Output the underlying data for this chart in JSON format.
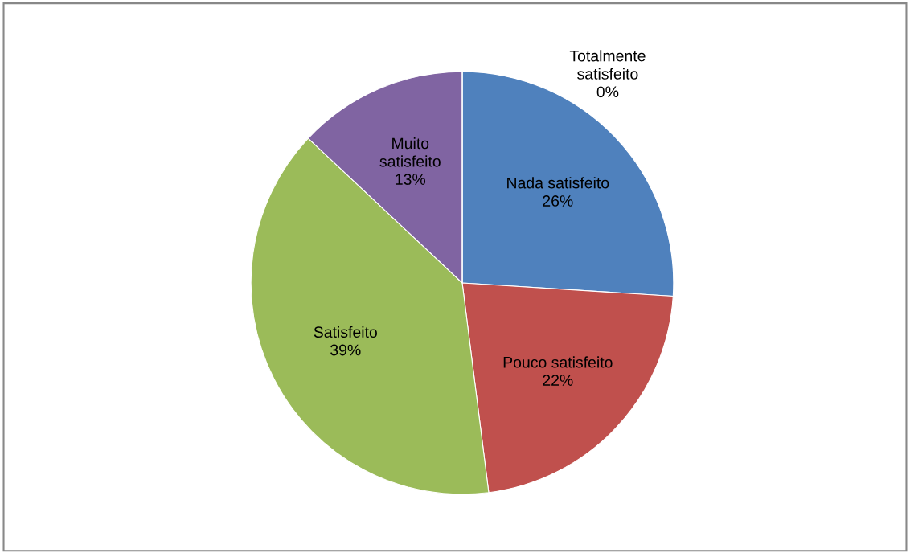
{
  "chart_data": {
    "type": "pie",
    "categories": [
      "Nada satisfeito",
      "Pouco satisfeito",
      "Satisfeito",
      "Muito satisfeito",
      "Totalmente satisfeito"
    ],
    "values": [
      26,
      22,
      39,
      13,
      0
    ],
    "value_labels": [
      "26%",
      "22%",
      "39%",
      "13%",
      "0%"
    ],
    "colors": [
      "#4f81bd",
      "#c0504d",
      "#9bbb59",
      "#8064a2",
      "#4bacc6"
    ],
    "legend": false
  }
}
